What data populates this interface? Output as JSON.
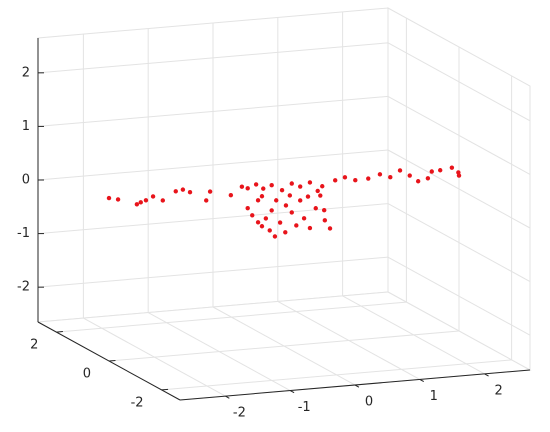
{
  "chart_data": {
    "type": "scatter3d",
    "xlim": [
      -2.7,
      2.7
    ],
    "ylim": [
      -2.7,
      2.7
    ],
    "zlim": [
      -2.65,
      2.65
    ],
    "xticks": [
      -2,
      -1,
      0,
      1,
      2
    ],
    "yticks": [
      -2,
      0,
      2
    ],
    "zticks": [
      -2,
      -1,
      0,
      1,
      2
    ],
    "grid": true,
    "color": "#e8141b",
    "x": [
      -2.7,
      -2.56,
      -2.27,
      -2.21,
      -2.13,
      -2.02,
      -1.87,
      -1.67,
      -1.56,
      -1.45,
      -1.2,
      -1.14,
      -0.82,
      -0.65,
      -0.56,
      -0.43,
      -0.32,
      -0.19,
      -0.03,
      0.12,
      0.25,
      0.4,
      0.59,
      0.79,
      0.94,
      1.1,
      1.3,
      1.48,
      1.64,
      1.79,
      1.94,
      2.07,
      2.28,
      2.41,
      2.59,
      2.69,
      2.7,
      2.22,
      -0.49,
      -0.4,
      -0.34,
      -0.22,
      -0.14,
      -0.28,
      -0.06,
      0.03,
      0.12,
      0.19,
      0.25,
      0.31,
      0.4,
      0.49,
      0.56,
      0.63,
      0.71,
      0.52,
      0.09,
      -0.4,
      -0.56,
      -0.19,
      0.02,
      -0.34,
      0.37,
      0.62,
      -0.12
    ],
    "y": [
      0,
      0,
      0,
      0,
      0,
      0,
      0,
      0,
      0,
      0,
      0,
      0,
      0,
      0,
      0,
      0,
      0,
      0,
      0,
      0,
      0,
      0,
      0,
      0,
      0,
      0,
      0,
      0,
      0,
      0,
      0,
      0,
      0,
      0,
      0,
      0,
      0,
      0,
      0,
      0,
      0,
      0,
      0,
      0,
      0,
      0,
      0,
      0,
      0,
      0,
      0,
      0,
      0,
      0,
      0,
      0,
      0,
      0,
      0,
      0,
      0,
      0,
      0,
      0,
      0
    ],
    "z": [
      0.39,
      0.35,
      0.23,
      0.26,
      0.29,
      0.35,
      0.26,
      0.41,
      0.43,
      0.37,
      0.19,
      0.35,
      0.25,
      0.39,
      0.35,
      0.41,
      0.32,
      0.37,
      0.26,
      0.37,
      0.3,
      0.36,
      0.27,
      0.36,
      0.4,
      0.33,
      0.34,
      0.4,
      0.33,
      0.44,
      0.33,
      0.21,
      0.37,
      0.38,
      0.41,
      0.31,
      0.25,
      0.25,
      -0.16,
      -0.3,
      -0.38,
      -0.47,
      -0.59,
      -0.24,
      -0.34,
      -0.03,
      -0.17,
      -0.42,
      0.04,
      -0.3,
      -0.49,
      -0.13,
      0.1,
      -0.37,
      -0.53,
      0.19,
      0.15,
      0.11,
      -0.02,
      -0.1,
      -0.53,
      0.18,
      0.1,
      -0.18,
      0.08
    ]
  }
}
